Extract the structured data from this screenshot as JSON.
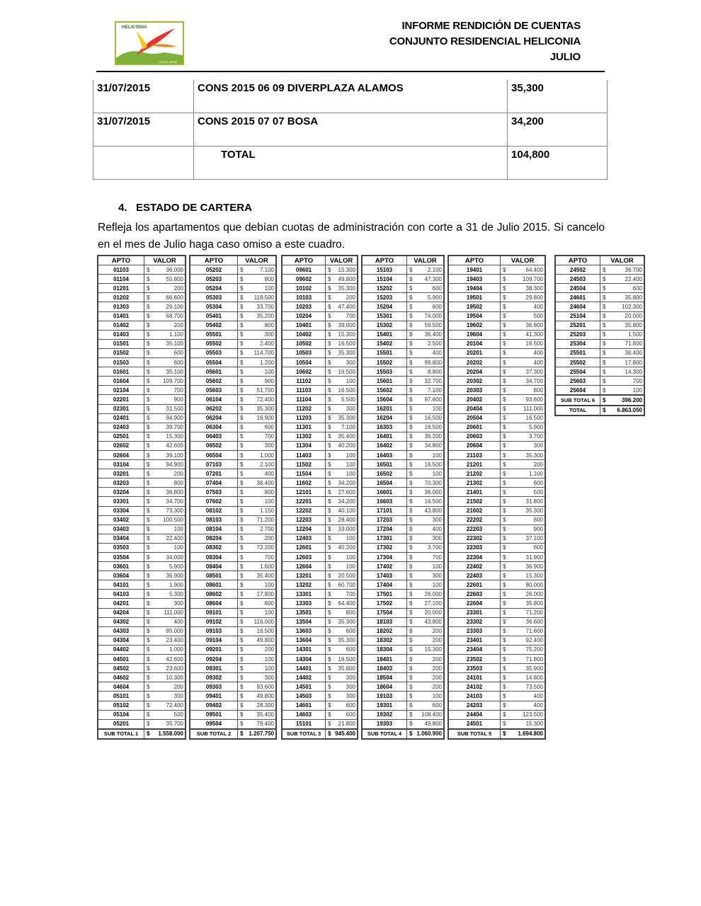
{
  "logo": {
    "name": "HELICONIA",
    "tagline": "CIUDAD VERDE",
    "colors": {
      "border": "#9bbb2c",
      "bird": "#e8352c",
      "yellow": "#f5c518",
      "green": "#7db13a"
    }
  },
  "header": {
    "line1": "INFORME RENDICIÓN DE CUENTAS",
    "line2": "CONJUNTO RESIDENCIAL HELICONIA",
    "line3": "JULIO"
  },
  "top_table": [
    {
      "date": "31/07/2015",
      "concept": "CONS 2015 06 09 DIVERPLAZA ALAMOS",
      "value": "35,300"
    },
    {
      "date": "31/07/2015",
      "concept": "CONS 2015 07 07 BOSA",
      "value": "34,200"
    },
    {
      "date": "",
      "concept": "TOTAL",
      "value": "104,800"
    }
  ],
  "section": {
    "title": "4.   ESTADO DE CARTERA",
    "text": "Refleja los apartamentos que debían cuotas de administración con corte a 31 de Julio 2015. Si cancelo en el mes de Julio haga caso omiso a este cuadro."
  },
  "cartera": {
    "headers": {
      "apto": "APTO",
      "valor": "VALOR"
    },
    "currency": "$",
    "tables": [
      {
        "rows": [
          [
            "01103",
            "36.000"
          ],
          [
            "01104",
            "55.800"
          ],
          [
            "01201",
            "200"
          ],
          [
            "01202",
            "66.600"
          ],
          [
            "01303",
            "29.100"
          ],
          [
            "01401",
            "68.700"
          ],
          [
            "01402",
            "200"
          ],
          [
            "01403",
            "1.100"
          ],
          [
            "01501",
            "35.100"
          ],
          [
            "01502",
            "600"
          ],
          [
            "01503",
            "600"
          ],
          [
            "01601",
            "35.100"
          ],
          [
            "01604",
            "109.700"
          ],
          [
            "02104",
            "700"
          ],
          [
            "02201",
            "900"
          ],
          [
            "02301",
            "31.500"
          ],
          [
            "02401",
            "94.900"
          ],
          [
            "02403",
            "39.700"
          ],
          [
            "02501",
            "15.300"
          ],
          [
            "02602",
            "42.600"
          ],
          [
            "02604",
            "39.100"
          ],
          [
            "03104",
            "94.900"
          ],
          [
            "03201",
            "200"
          ],
          [
            "03203",
            "800"
          ],
          [
            "03204",
            "36.800"
          ],
          [
            "03301",
            "34.700"
          ],
          [
            "03304",
            "73.300"
          ],
          [
            "03402",
            "100.500"
          ],
          [
            "03403",
            "100"
          ],
          [
            "03404",
            "22.400"
          ],
          [
            "03503",
            "100"
          ],
          [
            "03504",
            "34.000"
          ],
          [
            "03601",
            "5.900"
          ],
          [
            "03604",
            "36.900"
          ],
          [
            "04101",
            "1.900"
          ],
          [
            "04103",
            "5.300"
          ],
          [
            "04201",
            "300"
          ],
          [
            "04204",
            "111.000"
          ],
          [
            "04302",
            "400"
          ],
          [
            "04303",
            "85.000"
          ],
          [
            "04304",
            "23.400"
          ],
          [
            "04402",
            "1.000"
          ],
          [
            "04501",
            "42.600"
          ],
          [
            "04502",
            "23.600"
          ],
          [
            "04602",
            "10.300"
          ],
          [
            "04604",
            "200"
          ],
          [
            "05101",
            "300"
          ],
          [
            "05102",
            "72.400"
          ],
          [
            "05104",
            "500"
          ],
          [
            "05201",
            "35.700"
          ]
        ],
        "totals": [
          [
            "SUB TOTAL 1",
            "1.558.000"
          ]
        ]
      },
      {
        "rows": [
          [
            "05202",
            "7.100"
          ],
          [
            "05203",
            "800"
          ],
          [
            "05204",
            "100"
          ],
          [
            "05303",
            "118.500"
          ],
          [
            "05304",
            "33.700"
          ],
          [
            "05401",
            "35.200"
          ],
          [
            "05402",
            "800"
          ],
          [
            "05501",
            "300"
          ],
          [
            "05502",
            "2.400"
          ],
          [
            "05503",
            "114.700"
          ],
          [
            "05504",
            "1.200"
          ],
          [
            "05601",
            "100"
          ],
          [
            "05602",
            "900"
          ],
          [
            "05603",
            "51.700"
          ],
          [
            "06104",
            "72.400"
          ],
          [
            "06202",
            "35.300"
          ],
          [
            "06204",
            "16.900"
          ],
          [
            "06304",
            "600"
          ],
          [
            "06403",
            "700"
          ],
          [
            "06502",
            "300"
          ],
          [
            "06504",
            "1.000"
          ],
          [
            "07103",
            "2.100"
          ],
          [
            "07201",
            "400"
          ],
          [
            "07404",
            "36.400"
          ],
          [
            "07503",
            "800"
          ],
          [
            "07602",
            "100"
          ],
          [
            "08102",
            "1.150"
          ],
          [
            "08103",
            "71.200"
          ],
          [
            "08104",
            "2.700"
          ],
          [
            "08204",
            "200"
          ],
          [
            "08302",
            "72.200"
          ],
          [
            "08304",
            "700"
          ],
          [
            "08404",
            "1.600"
          ],
          [
            "08501",
            "35.400"
          ],
          [
            "08601",
            "100"
          ],
          [
            "08602",
            "17.800"
          ],
          [
            "08604",
            "600"
          ],
          [
            "09101",
            "100"
          ],
          [
            "09102",
            "116.000"
          ],
          [
            "09103",
            "16.500"
          ],
          [
            "09104",
            "49.800"
          ],
          [
            "09201",
            "200"
          ],
          [
            "09204",
            "100"
          ],
          [
            "09301",
            "100"
          ],
          [
            "09302",
            "300"
          ],
          [
            "09303",
            "93.600"
          ],
          [
            "09401",
            "49.800"
          ],
          [
            "09402",
            "28.300"
          ],
          [
            "09501",
            "35.400"
          ],
          [
            "09504",
            "79.400"
          ]
        ],
        "totals": [
          [
            "SUB TOTAL 2",
            "1.207.750"
          ]
        ]
      },
      {
        "rows": [
          [
            "09601",
            "15.300"
          ],
          [
            "09602",
            "49.800"
          ],
          [
            "10102",
            "35.300"
          ],
          [
            "10103",
            "200"
          ],
          [
            "10203",
            "47.400"
          ],
          [
            "10204",
            "700"
          ],
          [
            "10401",
            "39.000"
          ],
          [
            "10402",
            "15.300"
          ],
          [
            "10502",
            "16.500"
          ],
          [
            "10503",
            "35.300"
          ],
          [
            "10504",
            "300"
          ],
          [
            "10602",
            "16.500"
          ],
          [
            "11102",
            "100"
          ],
          [
            "11103",
            "16.500"
          ],
          [
            "11104",
            "5.500"
          ],
          [
            "11202",
            "300"
          ],
          [
            "11203",
            "35.300"
          ],
          [
            "11301",
            "7.100"
          ],
          [
            "11302",
            "35.400"
          ],
          [
            "11304",
            "40.200"
          ],
          [
            "11403",
            "100"
          ],
          [
            "11502",
            "100"
          ],
          [
            "11504",
            "100"
          ],
          [
            "11602",
            "34.200"
          ],
          [
            "12101",
            "27.600"
          ],
          [
            "12201",
            "34.200"
          ],
          [
            "12202",
            "40.100"
          ],
          [
            "12203",
            "28.400"
          ],
          [
            "12204",
            "33.000"
          ],
          [
            "12403",
            "100"
          ],
          [
            "12601",
            "40.200"
          ],
          [
            "12603",
            "100"
          ],
          [
            "12604",
            "100"
          ],
          [
            "13201",
            "20.500"
          ],
          [
            "13202",
            "60.700"
          ],
          [
            "13301",
            "700"
          ],
          [
            "13303",
            "64.400"
          ],
          [
            "13501",
            "800"
          ],
          [
            "13504",
            "35.300"
          ],
          [
            "13603",
            "600"
          ],
          [
            "13604",
            "35.300"
          ],
          [
            "14301",
            "600"
          ],
          [
            "14304",
            "16.500"
          ],
          [
            "14401",
            "35.800"
          ],
          [
            "14402",
            "300"
          ],
          [
            "14501",
            "300"
          ],
          [
            "14503",
            "300"
          ],
          [
            "14601",
            "600"
          ],
          [
            "14603",
            "600"
          ],
          [
            "15101",
            "21.800"
          ]
        ],
        "totals": [
          [
            "SUB TOTAL 3",
            "945.400"
          ]
        ]
      },
      {
        "rows": [
          [
            "15103",
            "2.100"
          ],
          [
            "15104",
            "47.300"
          ],
          [
            "15202",
            "600"
          ],
          [
            "15203",
            "5.900"
          ],
          [
            "15204",
            "600"
          ],
          [
            "15301",
            "74.000"
          ],
          [
            "15302",
            "59.500"
          ],
          [
            "15401",
            "36.400"
          ],
          [
            "15402",
            "2.500"
          ],
          [
            "15501",
            "400"
          ],
          [
            "15502",
            "99.800"
          ],
          [
            "15503",
            "8.800"
          ],
          [
            "15601",
            "32.700"
          ],
          [
            "15602",
            "7.100"
          ],
          [
            "15604",
            "97.600"
          ],
          [
            "16201",
            "100"
          ],
          [
            "16204",
            "16.500"
          ],
          [
            "16303",
            "16.500"
          ],
          [
            "16401",
            "36.200"
          ],
          [
            "16402",
            "34.800"
          ],
          [
            "16403",
            "100"
          ],
          [
            "16501",
            "16.500"
          ],
          [
            "16502",
            "100"
          ],
          [
            "16504",
            "70.300"
          ],
          [
            "16601",
            "36.000"
          ],
          [
            "16603",
            "16.500"
          ],
          [
            "17101",
            "43.800"
          ],
          [
            "17203",
            "300"
          ],
          [
            "17204",
            "400"
          ],
          [
            "17301",
            "300"
          ],
          [
            "17302",
            "3.700"
          ],
          [
            "17304",
            "700"
          ],
          [
            "17402",
            "100"
          ],
          [
            "17403",
            "300"
          ],
          [
            "17404",
            "100"
          ],
          [
            "17501",
            "26.000"
          ],
          [
            "17502",
            "27.100"
          ],
          [
            "17504",
            "20.000"
          ],
          [
            "18103",
            "43.800"
          ],
          [
            "18202",
            "200"
          ],
          [
            "18302",
            "200"
          ],
          [
            "18304",
            "15.300"
          ],
          [
            "18401",
            "200"
          ],
          [
            "18403",
            "200"
          ],
          [
            "18504",
            "200"
          ],
          [
            "18604",
            "200"
          ],
          [
            "19103",
            "100"
          ],
          [
            "19301",
            "600"
          ],
          [
            "19302",
            "108.400"
          ],
          [
            "19303",
            "49.800"
          ]
        ],
        "totals": [
          [
            "SUB TOTAL 4",
            "1.060.900"
          ]
        ]
      },
      {
        "rows": [
          [
            "19401",
            "64.400"
          ],
          [
            "19403",
            "109.700"
          ],
          [
            "19404",
            "38.300"
          ],
          [
            "19501",
            "29.800"
          ],
          [
            "19502",
            "400"
          ],
          [
            "19504",
            "500"
          ],
          [
            "19602",
            "36.800"
          ],
          [
            "19604",
            "41.300"
          ],
          [
            "20104",
            "16.500"
          ],
          [
            "20201",
            "400"
          ],
          [
            "20202",
            "400"
          ],
          [
            "20204",
            "37.300"
          ],
          [
            "20302",
            "34.700"
          ],
          [
            "20303",
            "800"
          ],
          [
            "20402",
            "93.600"
          ],
          [
            "20404",
            "111.000"
          ],
          [
            "20504",
            "16.500"
          ],
          [
            "20601",
            "5.900"
          ],
          [
            "20603",
            "3.700"
          ],
          [
            "20604",
            "300"
          ],
          [
            "21103",
            "35.300"
          ],
          [
            "21201",
            "200"
          ],
          [
            "21202",
            "1.100"
          ],
          [
            "21302",
            "600"
          ],
          [
            "21401",
            "500"
          ],
          [
            "21502",
            "31.800"
          ],
          [
            "21602",
            "35.300"
          ],
          [
            "22202",
            "600"
          ],
          [
            "22203",
            "900"
          ],
          [
            "22302",
            "37.100"
          ],
          [
            "22303",
            "600"
          ],
          [
            "22304",
            "31.900"
          ],
          [
            "22402",
            "36.900"
          ],
          [
            "22403",
            "15.300"
          ],
          [
            "22601",
            "80.000"
          ],
          [
            "22603",
            "26.000"
          ],
          [
            "22604",
            "35.800"
          ],
          [
            "23301",
            "71.200"
          ],
          [
            "23302",
            "36.600"
          ],
          [
            "23303",
            "71.600"
          ],
          [
            "23401",
            "92.400"
          ],
          [
            "23404",
            "75.200"
          ],
          [
            "23502",
            "71.800"
          ],
          [
            "23503",
            "35.900"
          ],
          [
            "24101",
            "14.800"
          ],
          [
            "24102",
            "73.500"
          ],
          [
            "24103",
            "400"
          ],
          [
            "24203",
            "400"
          ],
          [
            "24404",
            "123.500"
          ],
          [
            "24501",
            "15.300"
          ]
        ],
        "totals": [
          [
            "SUB TOTAL 5",
            "1.694.800"
          ]
        ]
      },
      {
        "rows": [
          [
            "24502",
            "36.700"
          ],
          [
            "24503",
            "22.400"
          ],
          [
            "24504",
            "600"
          ],
          [
            "24601",
            "35.800"
          ],
          [
            "24604",
            "102.300"
          ],
          [
            "25104",
            "20.000"
          ],
          [
            "25201",
            "35.800"
          ],
          [
            "25203",
            "1.500"
          ],
          [
            "25304",
            "71.800"
          ],
          [
            "25501",
            "36.400"
          ],
          [
            "25502",
            "17.800"
          ],
          [
            "25504",
            "14.300"
          ],
          [
            "25603",
            "700"
          ],
          [
            "25604",
            "100"
          ]
        ],
        "totals": [
          [
            "SUB TOTAL 6",
            "396.200"
          ],
          [
            "TOTAL",
            "6.863.050"
          ]
        ]
      }
    ]
  }
}
